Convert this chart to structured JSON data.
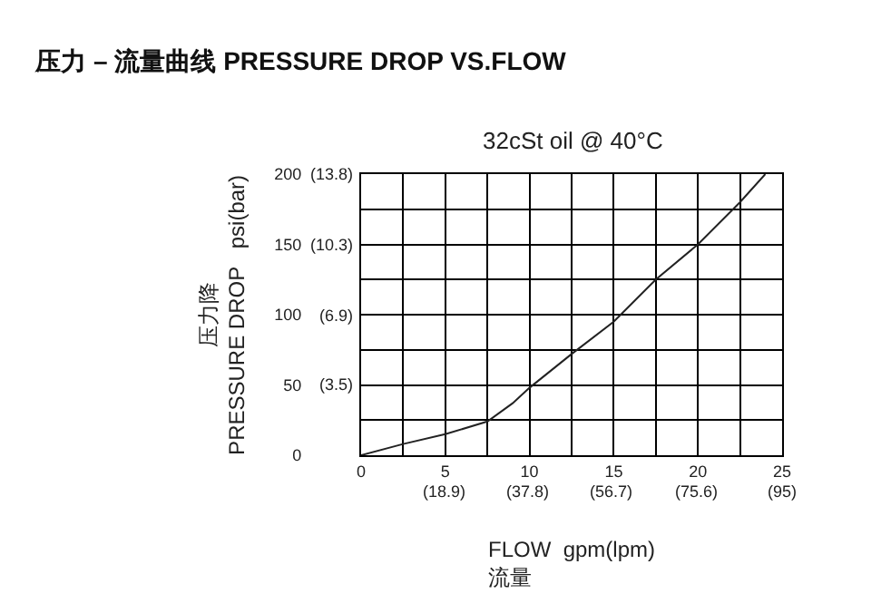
{
  "chart_data": {
    "type": "line",
    "title": "压力 – 流量曲线 PRESSURE DROP VS.FLOW",
    "subtitle": "32cSt oil @ 40°C",
    "xlabel": "FLOW  gpm(lpm)\n流量",
    "ylabel": "压力降\nPRESSURE DROP   psi(bar)",
    "x": [
      0,
      2.5,
      5,
      7.5,
      9,
      10,
      12.5,
      15,
      17.5,
      20,
      22.5,
      24
    ],
    "series": [
      {
        "color": "#222222",
        "values": [
          0,
          8,
          15,
          24,
          37,
          48,
          72,
          95,
          125,
          150,
          180,
          200
        ]
      }
    ],
    "xlim": [
      0,
      25
    ],
    "ylim": [
      0,
      200
    ],
    "xticks": [
      0,
      {
        "value": 2.5,
        "label": null
      },
      5,
      {
        "value": 7.5,
        "label": null
      },
      10,
      {
        "value": 12.5,
        "label": null
      },
      15,
      {
        "value": 17.5,
        "label": null
      },
      20,
      {
        "value": 22.5,
        "label": null
      },
      25
    ],
    "yticks": [
      0,
      {
        "value": 25,
        "label": null
      },
      50,
      {
        "value": 75,
        "label": null
      },
      100,
      {
        "value": 125,
        "label": null
      },
      150,
      {
        "value": 175,
        "label": null
      },
      200
    ],
    "x2lim": [
      0,
      95
    ],
    "x2ticks": [
      {
        "value": 18.9,
        "label": "(18.9)"
      },
      {
        "value": 37.8,
        "label": "(37.8)"
      },
      {
        "value": 56.7,
        "label": "(56.7)"
      },
      {
        "value": 75.6,
        "label": "(75.6)"
      },
      {
        "value": 95,
        "label": "(95)"
      }
    ],
    "y2lim": [
      0,
      13.8
    ],
    "y2ticks": [
      {
        "value": 3.5,
        "label": "(3.5)"
      },
      {
        "value": 6.9,
        "label": "(6.9)"
      },
      {
        "value": 10.3,
        "label": "(10.3)"
      },
      {
        "value": 13.8,
        "label": "(13.8)"
      }
    ],
    "grid": true,
    "marker": "none",
    "line_style": "solid"
  }
}
